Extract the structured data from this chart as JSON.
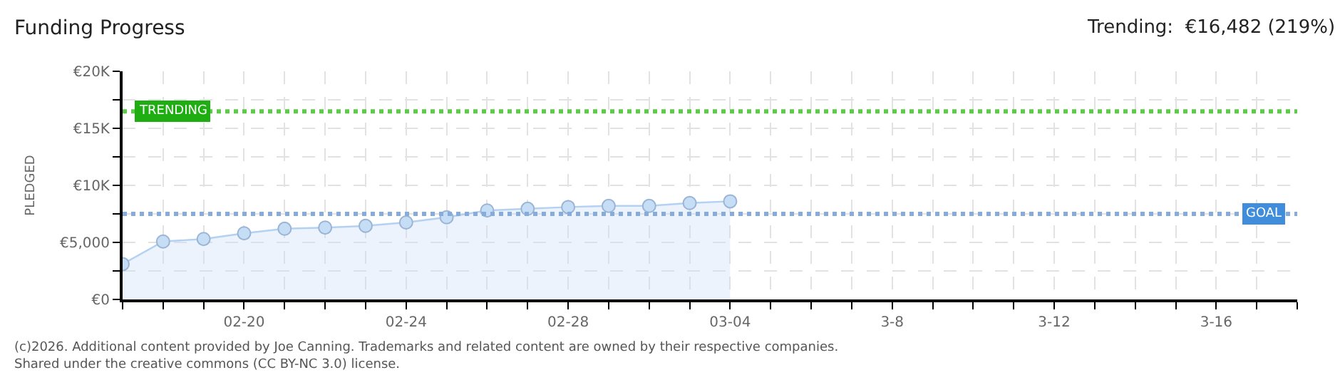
{
  "chart_data": {
    "type": "area",
    "title": "Funding Progress",
    "subtitle": "Trending:  €16,482 (219%)",
    "ylabel": "PLEDGED",
    "x": [
      "--02-17",
      "--02-18",
      "--02-19",
      "--02-20",
      "--02-21",
      "--02-22",
      "--02-23",
      "--02-24",
      "--02-25",
      "--02-26",
      "--02-27",
      "--02-28",
      "--03-01",
      "--03-02",
      "--03-03",
      "--03-04"
    ],
    "series": [
      {
        "color": "#b3d1f2",
        "values": [
          3100,
          5080,
          5300,
          5800,
          6200,
          6300,
          6450,
          6750,
          7200,
          7800,
          7950,
          8100,
          8200,
          8200,
          8450,
          8600
        ]
      }
    ],
    "marker": "circle",
    "xlim": [
      "--02-17",
      "--03-18"
    ],
    "xticks": [
      {
        "value": "--02-17",
        "label": null
      },
      {
        "value": "--02-18",
        "label": null
      },
      {
        "value": "--02-19",
        "label": null
      },
      {
        "value": "--02-20",
        "label": "02-20"
      },
      {
        "value": "--02-21",
        "label": null
      },
      {
        "value": "--02-22",
        "label": null
      },
      {
        "value": "--02-23",
        "label": null
      },
      {
        "value": "--02-24",
        "label": "02-24"
      },
      {
        "value": "--02-25",
        "label": null
      },
      {
        "value": "--02-26",
        "label": null
      },
      {
        "value": "--02-27",
        "label": null
      },
      {
        "value": "--02-28",
        "label": "02-28"
      },
      {
        "value": "--03-01",
        "label": null
      },
      {
        "value": "--03-02",
        "label": null
      },
      {
        "value": "--03-03",
        "label": null
      },
      {
        "value": "--03-04",
        "label": "03-04"
      },
      {
        "value": "--03-05",
        "label": null
      },
      {
        "value": "--03-06",
        "label": null
      },
      {
        "value": "--03-07",
        "label": null
      },
      {
        "value": "--03-08",
        "label": "3-8"
      },
      {
        "value": "--03-09",
        "label": null
      },
      {
        "value": "--03-10",
        "label": null
      },
      {
        "value": "--03-11",
        "label": null
      },
      {
        "value": "--03-12",
        "label": "3-12"
      },
      {
        "value": "--03-13",
        "label": null
      },
      {
        "value": "--03-14",
        "label": null
      },
      {
        "value": "--03-15",
        "label": null
      },
      {
        "value": "--03-16",
        "label": "3-16"
      },
      {
        "value": "--03-17",
        "label": null
      },
      {
        "value": "--03-18",
        "label": null
      }
    ],
    "ylim": [
      0,
      20000
    ],
    "yticks": [
      {
        "value": 0,
        "label": "€0"
      },
      {
        "value": 2500,
        "label": null
      },
      {
        "value": 5000,
        "label": "€5,000"
      },
      {
        "value": 7500,
        "label": null
      },
      {
        "value": 10000,
        "label": "€10K"
      },
      {
        "value": 12500,
        "label": null
      },
      {
        "value": 15000,
        "label": "€15K"
      },
      {
        "value": 17500,
        "label": null
      },
      {
        "value": 20000,
        "label": "€20K"
      }
    ],
    "grid": true,
    "ref_lines": [
      {
        "axis": "y",
        "value": 16482,
        "label": "TRENDING",
        "color": "#5ec94a",
        "line_style": "dotted"
      },
      {
        "axis": "y",
        "value": 7500,
        "label": "GOAL",
        "color": "#86acdc",
        "line_style": "dotted"
      }
    ],
    "annotations": [
      "(c)2026. Additional content provided by Joe Canning. Trademarks and related content are owned by their respective companies.",
      "Shared under the creative commons (CC BY-NC 3.0) license."
    ]
  }
}
